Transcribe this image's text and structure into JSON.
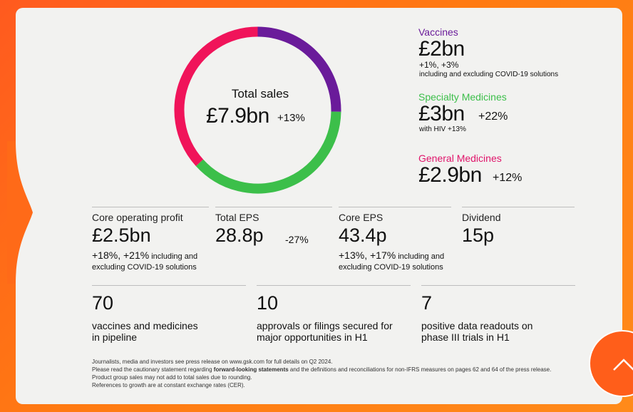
{
  "total_sales": {
    "label": "Total sales",
    "value": "£7.9bn",
    "growth": "+13%"
  },
  "segments": [
    {
      "name": "Vaccines",
      "value": "£2bn",
      "growth": "+1%, +3%",
      "note": "including and excluding COVID-19 solutions",
      "color": "#6a1b9a"
    },
    {
      "name": "Specialty Medicines",
      "value": "£3bn",
      "growth": "+22%",
      "note": "with HIV +13%",
      "color": "#3cbf4a"
    },
    {
      "name": "General Medicines",
      "value": "£2.9bn",
      "growth": "+12%",
      "note": "",
      "color": "#f0145a"
    }
  ],
  "donut_values_bn": [
    2.0,
    3.0,
    2.9
  ],
  "kpis": {
    "core_op": {
      "title": "Core operating profit",
      "value": "£2.5bn",
      "growth": "+18%, +21%",
      "note1": "including and",
      "note2": "excluding COVID-19 solutions"
    },
    "total_eps": {
      "title": "Total EPS",
      "value": "28.8p",
      "growth": "-27%"
    },
    "core_eps": {
      "title": "Core EPS",
      "value": "43.4p",
      "growth": "+13%, +17%",
      "note1": "including and",
      "note2": "excluding COVID-19 solutions"
    },
    "dividend": {
      "title": "Dividend",
      "value": "15p"
    }
  },
  "pipeline": [
    {
      "number": "70",
      "line1": "vaccines and medicines",
      "line2": "in pipeline"
    },
    {
      "number": "10",
      "line1": "approvals or filings secured for",
      "line2": "major opportunities in H1"
    },
    {
      "number": "7",
      "line1": "positive data readouts on",
      "line2": "phase III trials in H1"
    }
  ],
  "footer": {
    "line1": "Journalists, media and investors see press release on www.gsk.com for full details on Q2 2024.",
    "line2_pre": "Please read the cautionary statement regarding ",
    "line2_bold": "forward-looking statements",
    "line2_post": " and the definitions and reconciliations for non-IFRS measures on pages 62 and 64 of the press release.",
    "line3": "Product group sales may not add to total sales due to rounding.",
    "line4": "References to growth are at constant exchange rates (CER)."
  },
  "icons": {
    "scroll_top": "chevron-up-icon"
  }
}
